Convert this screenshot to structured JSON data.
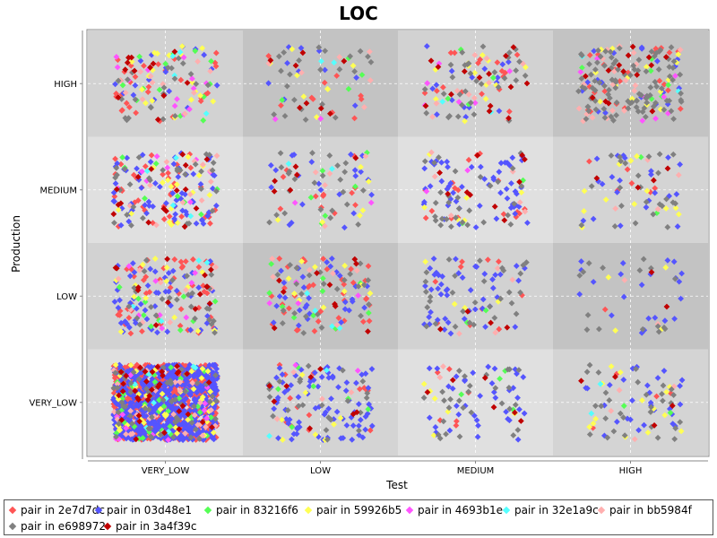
{
  "chart_data": {
    "type": "scatter",
    "title": "LOC",
    "xlabel": "Test",
    "ylabel": "Production",
    "x_categories": [
      "VERY_LOW",
      "LOW",
      "MEDIUM",
      "HIGH"
    ],
    "y_categories": [
      "VERY_LOW",
      "LOW",
      "MEDIUM",
      "HIGH"
    ],
    "jittered": true,
    "grid": true,
    "legend_position": "bottom",
    "series": [
      {
        "name": "pair in 2e7d7dc",
        "color": "#ff5555",
        "counts": [
          [
            750,
            14,
            6,
            4
          ],
          [
            48,
            38,
            10,
            1
          ],
          [
            40,
            12,
            18,
            6
          ],
          [
            30,
            10,
            16,
            22
          ]
        ]
      },
      {
        "name": "pair in 03d48e1",
        "color": "#5555ff",
        "counts": [
          [
            640,
            85,
            38,
            28
          ],
          [
            55,
            30,
            46,
            22
          ],
          [
            65,
            22,
            54,
            22
          ],
          [
            18,
            10,
            16,
            18
          ]
        ]
      },
      {
        "name": "pair in 83216f6",
        "color": "#55ff55",
        "counts": [
          [
            40,
            6,
            4,
            2
          ],
          [
            10,
            10,
            2,
            0
          ],
          [
            8,
            6,
            2,
            2
          ],
          [
            14,
            4,
            4,
            6
          ]
        ]
      },
      {
        "name": "pair in 59926b5",
        "color": "#ffff55",
        "counts": [
          [
            45,
            8,
            6,
            14
          ],
          [
            14,
            10,
            4,
            4
          ],
          [
            16,
            6,
            6,
            12
          ],
          [
            18,
            8,
            12,
            16
          ]
        ]
      },
      {
        "name": "pair in 4693b1e",
        "color": "#ff55ff",
        "counts": [
          [
            12,
            2,
            0,
            0
          ],
          [
            8,
            4,
            0,
            0
          ],
          [
            8,
            2,
            2,
            0
          ],
          [
            12,
            2,
            6,
            8
          ]
        ]
      },
      {
        "name": "pair in 32e1a9c",
        "color": "#55ffff",
        "counts": [
          [
            8,
            2,
            0,
            2
          ],
          [
            4,
            4,
            0,
            0
          ],
          [
            4,
            2,
            0,
            0
          ],
          [
            4,
            2,
            2,
            2
          ]
        ]
      },
      {
        "name": "pair in bb5984f",
        "color": "#ffafaf",
        "counts": [
          [
            30,
            4,
            2,
            4
          ],
          [
            10,
            6,
            4,
            2
          ],
          [
            12,
            6,
            6,
            4
          ],
          [
            12,
            6,
            10,
            20
          ]
        ]
      },
      {
        "name": "pair in e698972",
        "color": "#808080",
        "counts": [
          [
            60,
            24,
            28,
            30
          ],
          [
            26,
            24,
            30,
            16
          ],
          [
            30,
            24,
            30,
            24
          ],
          [
            22,
            22,
            32,
            100
          ]
        ]
      },
      {
        "name": "pair in 3a4f39c",
        "color": "#c00000",
        "counts": [
          [
            36,
            8,
            6,
            4
          ],
          [
            14,
            10,
            4,
            2
          ],
          [
            16,
            6,
            10,
            4
          ],
          [
            12,
            8,
            14,
            14
          ]
        ]
      }
    ]
  }
}
